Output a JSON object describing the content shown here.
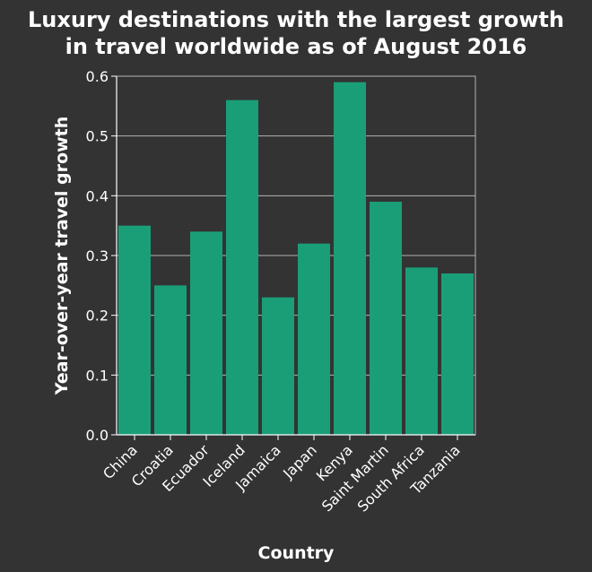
{
  "chart_data": {
    "type": "bar",
    "title_lines": [
      "Luxury destinations with the largest growth",
      "in travel worldwide as of August 2016"
    ],
    "xlabel": "Country",
    "ylabel": "Year-over-year travel growth",
    "categories": [
      "China",
      "Croatia",
      "Ecuador",
      "Iceland",
      "Jamaica",
      "Japan",
      "Kenya",
      "Saint Martin",
      "South Africa",
      "Tanzania"
    ],
    "values": [
      0.35,
      0.25,
      0.34,
      0.56,
      0.23,
      0.32,
      0.59,
      0.39,
      0.28,
      0.27
    ],
    "ylim": [
      0,
      0.6
    ],
    "yticks": [
      "0.0",
      "0.1",
      "0.2",
      "0.3",
      "0.4",
      "0.5",
      "0.6"
    ],
    "grid": true,
    "bar_color": "#1a9e78",
    "background_color": "#333333",
    "grid_color": "#b3b3b3"
  }
}
